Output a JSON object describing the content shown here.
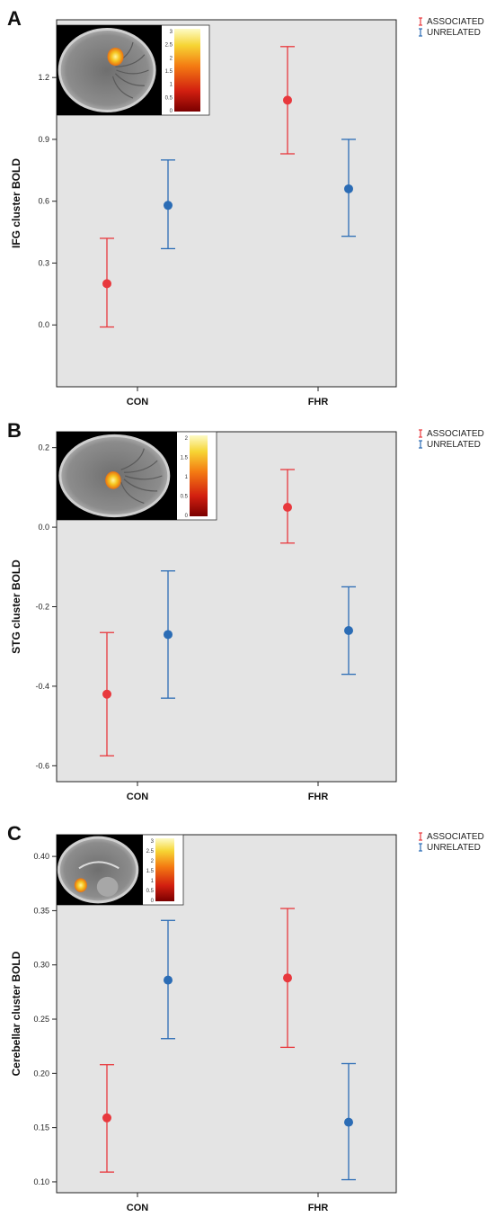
{
  "colors": {
    "associated": "#e8383d",
    "unrelated": "#2b6cb5",
    "plot_bg": "#e4e4e4"
  },
  "chart_data": [
    {
      "type": "scatter",
      "panel": "A",
      "ylabel": "IFG cluster BOLD",
      "ylim": [
        -0.3,
        1.48
      ],
      "yticks": [
        0.0,
        0.3,
        0.6,
        0.9,
        1.2
      ],
      "categories": [
        "CON",
        "FHR"
      ],
      "legend": [
        "ASSOCIATED",
        "UNRELATED"
      ],
      "series": [
        {
          "name": "ASSOCIATED",
          "values": [
            0.2,
            1.09
          ],
          "lower": [
            -0.01,
            0.83
          ],
          "upper": [
            0.42,
            1.35
          ]
        },
        {
          "name": "UNRELATED",
          "values": [
            0.58,
            0.66
          ],
          "lower": [
            0.37,
            0.43
          ],
          "upper": [
            0.8,
            0.9
          ]
        }
      ],
      "inset": {
        "view": "sagittal",
        "blob": [
          0.56,
          0.35
        ],
        "colorbar_ticks": [
          "3",
          "2.5",
          "2",
          "1.5",
          "1",
          "0.5",
          "0"
        ]
      }
    },
    {
      "type": "scatter",
      "panel": "B",
      "ylabel": "STG cluster BOLD",
      "ylim": [
        -0.64,
        0.24
      ],
      "yticks": [
        -0.6,
        -0.4,
        -0.2,
        0.0,
        0.2
      ],
      "categories": [
        "CON",
        "FHR"
      ],
      "legend": [
        "ASSOCIATED",
        "UNRELATED"
      ],
      "series": [
        {
          "name": "ASSOCIATED",
          "values": [
            -0.42,
            0.05
          ],
          "lower": [
            -0.575,
            -0.04
          ],
          "upper": [
            -0.265,
            0.145
          ]
        },
        {
          "name": "UNRELATED",
          "values": [
            -0.27,
            -0.26
          ],
          "lower": [
            -0.43,
            -0.37
          ],
          "upper": [
            -0.11,
            -0.15
          ]
        }
      ],
      "inset": {
        "view": "sagittal",
        "blob": [
          0.47,
          0.55
        ],
        "colorbar_ticks": [
          "2",
          "1.5",
          "1",
          "0.5",
          "0"
        ]
      }
    },
    {
      "type": "scatter",
      "panel": "C",
      "ylabel": "Cerebellar cluster BOLD",
      "ylim": [
        0.09,
        0.42
      ],
      "yticks": [
        0.1,
        0.15,
        0.2,
        0.25,
        0.3,
        0.35,
        0.4
      ],
      "ytick_labels": [
        "0.10",
        "0.15",
        "0.20",
        "0.25",
        "0.30",
        "0.35",
        "0.40"
      ],
      "categories": [
        "CON",
        "FHR"
      ],
      "legend": [
        "ASSOCIATED",
        "UNRELATED"
      ],
      "series": [
        {
          "name": "ASSOCIATED",
          "values": [
            0.159,
            0.288
          ],
          "lower": [
            0.109,
            0.224
          ],
          "upper": [
            0.208,
            0.352
          ]
        },
        {
          "name": "UNRELATED",
          "values": [
            0.286,
            0.155
          ],
          "lower": [
            0.232,
            0.102
          ],
          "upper": [
            0.341,
            0.209
          ]
        }
      ],
      "inset": {
        "view": "midsagittal",
        "blob": [
          0.28,
          0.72
        ],
        "colorbar_ticks": [
          "3",
          "2.5",
          "2",
          "1.5",
          "1",
          "0.5",
          "0"
        ]
      }
    }
  ]
}
